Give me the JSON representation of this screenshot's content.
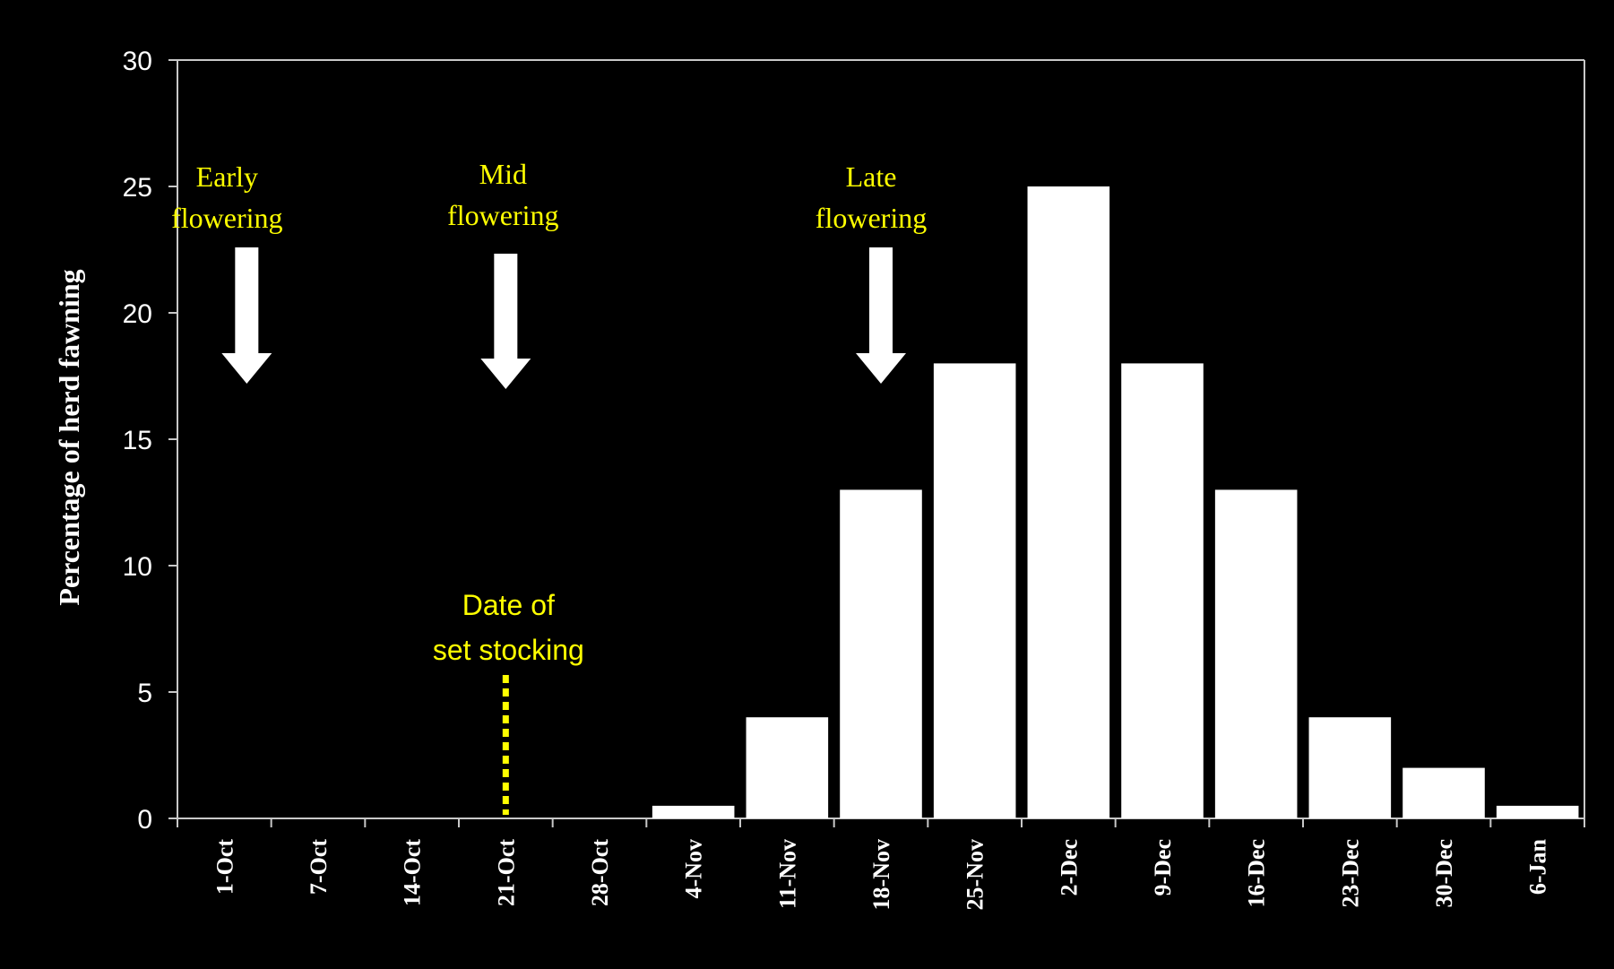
{
  "colors": {
    "background": "#000000",
    "bars": "#ffffff",
    "axis": "#c8c8c8",
    "annotation_text": "#ffff00",
    "arrows": "#ffffff",
    "stocking_line": "#ffff00"
  },
  "chart_data": {
    "type": "bar",
    "ylabel": "Percentage of herd fawning",
    "xlabel": "",
    "ylim": [
      0,
      30
    ],
    "yticks": [
      0,
      5,
      10,
      15,
      20,
      25,
      30
    ],
    "grid": false,
    "categories": [
      "1-Oct",
      "7-Oct",
      "14-Oct",
      "21-Oct",
      "28-Oct",
      "4-Nov",
      "11-Nov",
      "18-Nov",
      "25-Nov",
      "2-Dec",
      "9-Dec",
      "16-Dec",
      "23-Dec",
      "30-Dec",
      "6-Jan"
    ],
    "values": [
      0,
      0,
      0,
      0,
      0,
      0.5,
      4,
      13,
      18,
      25,
      18,
      13,
      4,
      2,
      0.5
    ],
    "annotations": [
      {
        "id": "early",
        "text_lines": [
          "Early",
          "flowering"
        ],
        "type": "arrow",
        "category": "1-Oct"
      },
      {
        "id": "mid",
        "text_lines": [
          "Mid",
          "flowering"
        ],
        "type": "arrow",
        "category": "21-Oct"
      },
      {
        "id": "late",
        "text_lines": [
          "Late",
          "flowering"
        ],
        "type": "arrow",
        "category": "18-Nov"
      },
      {
        "id": "stocking",
        "text_lines": [
          "Date of",
          "set stocking"
        ],
        "type": "dashed-line",
        "category": "21-Oct"
      }
    ]
  }
}
